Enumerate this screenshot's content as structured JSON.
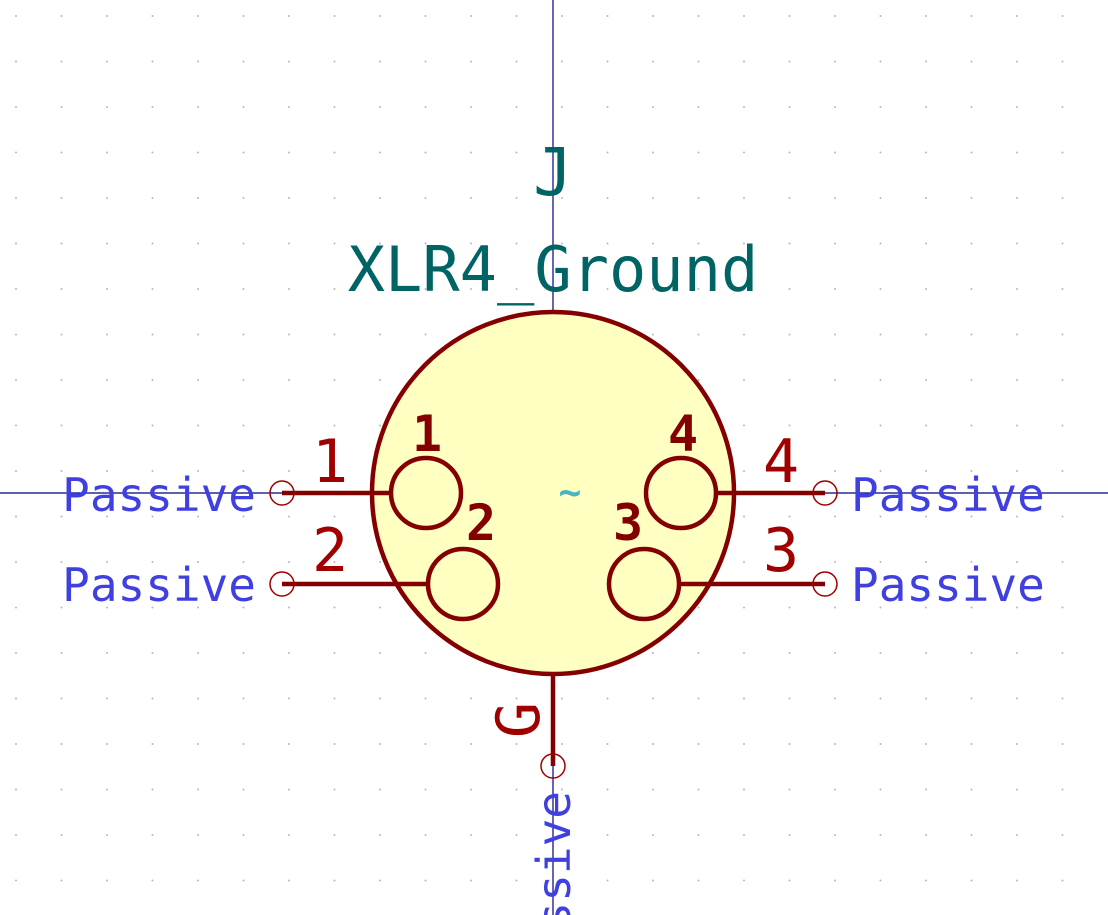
{
  "symbol": {
    "reference": "J",
    "value": "XLR4_Ground",
    "center_mark": "~",
    "colors": {
      "body_fill": "#FFFFC2",
      "body_stroke": "#840000",
      "pin_line": "#840000",
      "pin_text": "#A00000",
      "field_text": "#006464",
      "electrical_type_text": "#4040E0",
      "crosshair": "#000080",
      "grid_dot": "#B8B8B8"
    },
    "pins": [
      {
        "number": "1",
        "inner_label": "1",
        "electrical_type": "Passive"
      },
      {
        "number": "2",
        "inner_label": "2",
        "electrical_type": "Passive"
      },
      {
        "number": "3",
        "inner_label": "3",
        "electrical_type": "Passive"
      },
      {
        "number": "4",
        "inner_label": "4",
        "electrical_type": "Passive"
      },
      {
        "number": "G",
        "electrical_type": "Passive",
        "visible_type_text": "ssive"
      }
    ]
  }
}
